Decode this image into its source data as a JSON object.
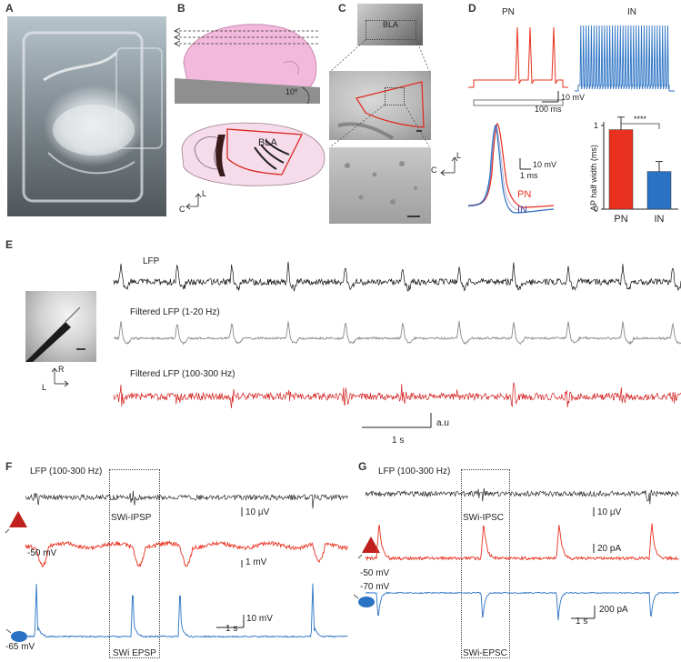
{
  "panels": {
    "A": "A",
    "B": "B",
    "C": "C",
    "D": "D",
    "E": "E",
    "F": "F",
    "G": "G"
  },
  "panel_b": {
    "angle": "10º",
    "region": "BLA",
    "axis_l": "L",
    "axis_c": "C"
  },
  "panel_c": {
    "region": "BLA",
    "axis_l": "L",
    "axis_c": "C"
  },
  "panel_d": {
    "pn_label": "PN",
    "in_label": "IN",
    "scale_v": "10 mV",
    "scale_t": "100 ms",
    "ap_scale_v": "10 mV",
    "ap_scale_t": "1 ms",
    "legend_pn": "PN",
    "legend_in": "IN",
    "colors": {
      "pn": "#e8311f",
      "in": "#2a72c4"
    }
  },
  "panel_e": {
    "trace1": "LFP",
    "trace2": "Filtered LFP (1-20 Hz)",
    "trace3": "Filtered LFP (100-300 Hz)",
    "scale_y": "a.u",
    "scale_x": "1 s",
    "axis_r": "R",
    "axis_l": "L"
  },
  "panel_f": {
    "lfp": "LFP (100-300 Hz)",
    "scale_lfp": "10 µV",
    "event_top": "SWi-IPSP",
    "vm1": "-50 mV",
    "scale_vm1": "1 mV",
    "scale_vm2": "10 mV",
    "scale_t": "1 s",
    "vm2": "-65 mV",
    "event_bottom": "SWi EPSP"
  },
  "panel_g": {
    "lfp": "LFP (100-300 Hz)",
    "scale_lfp": "10 µV",
    "event_top": "SWi-IPSC",
    "scale_i1": "20 pA",
    "vm1": "-50 mV",
    "vm2": "-70 mV",
    "scale_i2": "200 pA",
    "scale_t": "1 s",
    "event_bottom": "SWi-EPSC"
  },
  "chart_data": {
    "type": "bar",
    "categories": [
      "PN",
      "IN"
    ],
    "values": [
      0.95,
      0.45
    ],
    "errors": [
      0.15,
      0.12
    ],
    "ylabel": "AP half width (ms)",
    "ylim": [
      0,
      1.0
    ],
    "yticks": [
      "0",
      "1"
    ],
    "significance": "****",
    "colors": [
      "#e8311f",
      "#2a72c4"
    ]
  }
}
